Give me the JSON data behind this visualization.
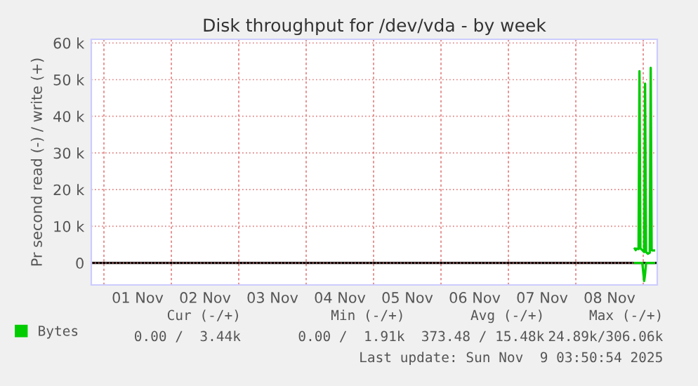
{
  "chart_data": {
    "type": "line",
    "title": "Disk throughput for /dev/vda - by week",
    "ylabel": "Pr second read (-) / write (+)",
    "xlim": [
      "2025-10-31T19:30",
      "2025-11-09T05:00"
    ],
    "xticks": [
      {
        "value": "2025-11-01T00:00",
        "label": null
      },
      {
        "value": "2025-11-01T12:00",
        "label": "01 Nov"
      },
      {
        "value": "2025-11-02T00:00",
        "label": null
      },
      {
        "value": "2025-11-02T12:00",
        "label": "02 Nov"
      },
      {
        "value": "2025-11-03T00:00",
        "label": null
      },
      {
        "value": "2025-11-03T12:00",
        "label": "03 Nov"
      },
      {
        "value": "2025-11-04T00:00",
        "label": null
      },
      {
        "value": "2025-11-04T12:00",
        "label": "04 Nov"
      },
      {
        "value": "2025-11-05T00:00",
        "label": null
      },
      {
        "value": "2025-11-05T12:00",
        "label": "05 Nov"
      },
      {
        "value": "2025-11-06T00:00",
        "label": null
      },
      {
        "value": "2025-11-06T12:00",
        "label": "06 Nov"
      },
      {
        "value": "2025-11-07T00:00",
        "label": null
      },
      {
        "value": "2025-11-07T12:00",
        "label": "07 Nov"
      },
      {
        "value": "2025-11-08T00:00",
        "label": null
      },
      {
        "value": "2025-11-08T12:00",
        "label": "08 Nov"
      },
      {
        "value": "2025-11-09T00:00",
        "label": null
      }
    ],
    "ylim": [
      -6000,
      61000
    ],
    "yticks": [
      0,
      {
        "value": 10000,
        "label": "10 k"
      },
      {
        "value": 20000,
        "label": "20 k"
      },
      {
        "value": 30000,
        "label": "30 k"
      },
      {
        "value": 40000,
        "label": "40 k"
      },
      {
        "value": 50000,
        "label": "50 k"
      },
      {
        "value": 60000,
        "label": "60 k"
      }
    ],
    "grid": true,
    "legend": "bottom",
    "marker": "none",
    "line_style": "solid",
    "ref_lines": [
      {
        "axis": "y",
        "value": 0,
        "color": "#000000"
      }
    ],
    "series": [
      {
        "name": "Bytes",
        "color": "#00cc00",
        "x": [
          "2025-11-08T21:00",
          "2025-11-08T21:20",
          "2025-11-08T21:40",
          "2025-11-08T22:20",
          "2025-11-08T22:40",
          "2025-11-08T23:00",
          "2025-11-08T23:40",
          "2025-11-09T00:20",
          "2025-11-09T00:40",
          "2025-11-09T01:00",
          "2025-11-09T01:40",
          "2025-11-09T02:20",
          "2025-11-09T02:40",
          "2025-11-09T03:00",
          "2025-11-09T03:20",
          "2025-11-09T03:50"
        ],
        "values": [
          3900,
          3500,
          3900,
          3800,
          52300,
          4000,
          3500,
          3000,
          48900,
          3000,
          2500,
          2800,
          53200,
          3500,
          3400,
          3400
        ]
      },
      {
        "color": "#00cc00",
        "x": [
          "2025-11-08T21:00",
          "2025-11-08T23:40",
          "2025-11-09T00:20",
          "2025-11-09T00:40",
          "2025-11-09T01:00",
          "2025-11-09T03:50"
        ],
        "values": [
          0,
          0,
          -4900,
          -3000,
          0,
          0
        ]
      }
    ],
    "annotations": [
      "Cur (-/+)",
      "Min (-/+)",
      "Avg (-/+)",
      "Max (-/+)",
      "0.00 /  3.44k",
      "0.00 /  1.91k",
      "373.48 / 15.48k",
      "24.89k/306.06k",
      "Last update: Sun Nov  9 03:50:54 2025"
    ]
  }
}
